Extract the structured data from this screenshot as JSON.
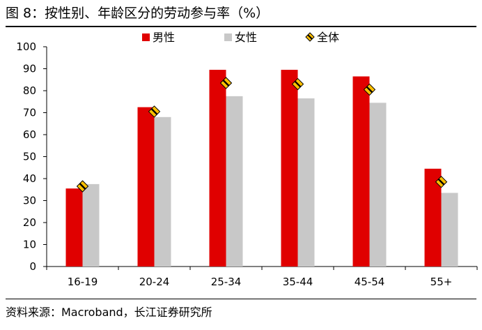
{
  "title": "图 8：按性别、年龄区分的劳动参与率（%）",
  "source": "资料来源：Macroband，长江证券研究所",
  "chart_data": {
    "type": "bar",
    "categories": [
      "16-19",
      "20-24",
      "25-34",
      "35-44",
      "45-54",
      "55+"
    ],
    "series": [
      {
        "name": "男性",
        "type": "bar",
        "color": "#e00000",
        "values": [
          35.5,
          72.5,
          89.5,
          89.5,
          86.5,
          44.5
        ]
      },
      {
        "name": "女性",
        "type": "bar",
        "color": "#c8c8c8",
        "values": [
          37.5,
          68.0,
          77.5,
          76.5,
          74.5,
          33.5
        ]
      },
      {
        "name": "全体",
        "type": "marker",
        "color": "#ffc000",
        "values": [
          36.5,
          70.5,
          83.5,
          83.0,
          80.5,
          38.5
        ]
      }
    ],
    "xlabel": "",
    "ylabel": "",
    "ylim": [
      0,
      100
    ],
    "yticks": [
      0,
      10,
      20,
      30,
      40,
      50,
      60,
      70,
      80,
      90,
      100
    ],
    "legend_position": "top",
    "grid": false
  }
}
